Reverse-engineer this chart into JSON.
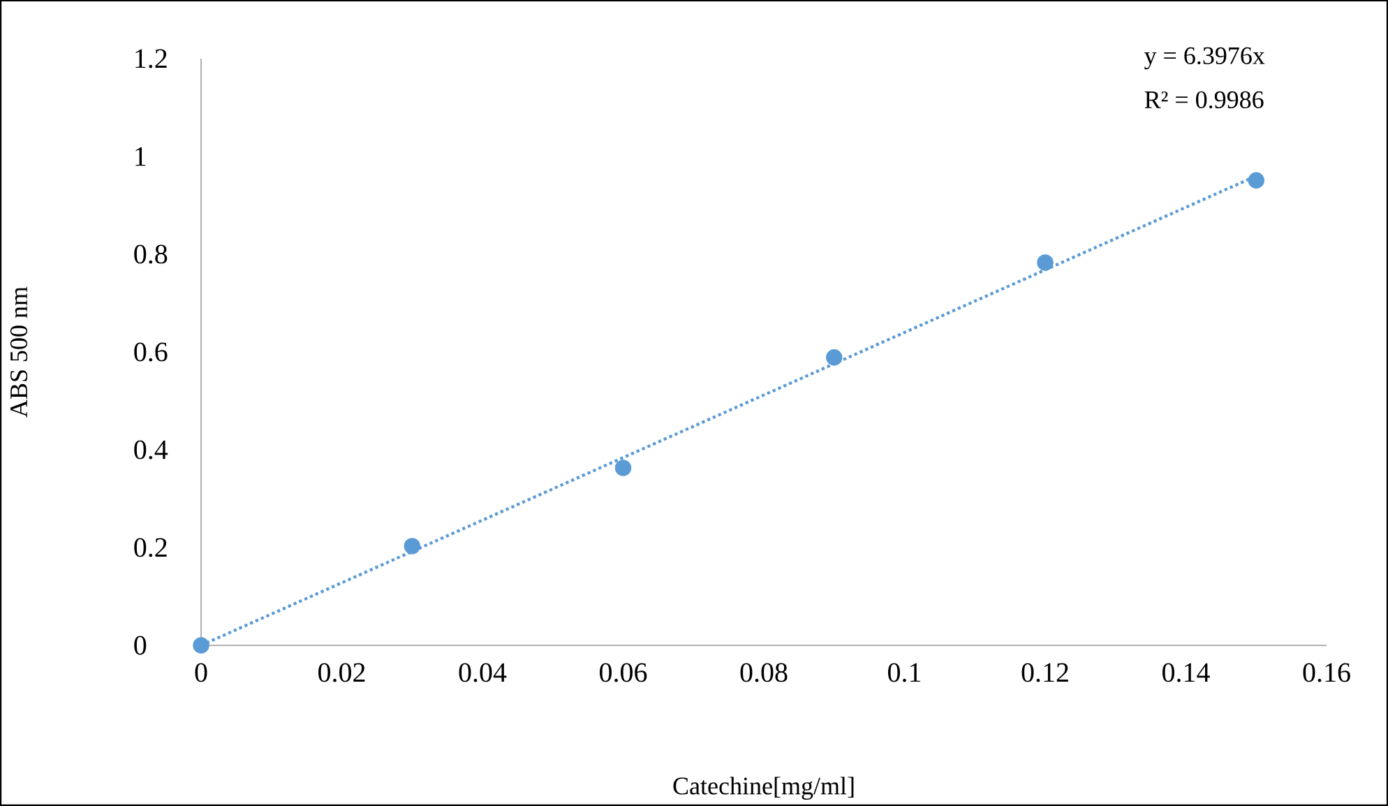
{
  "chart_data": {
    "type": "scatter",
    "xlabel": "Catechine[mg/ml]",
    "ylabel": "ABS 500 nm",
    "annotations": [
      "y = 6.3976x",
      "R² = 0.9986"
    ],
    "series": [
      {
        "color": "#5b9bd5",
        "x": [
          0,
          0.03,
          0.06,
          0.09,
          0.12,
          0.15
        ],
        "values": [
          0,
          0.203,
          0.363,
          0.589,
          0.783,
          0.951
        ],
        "marker": "circle"
      },
      {
        "type": "line",
        "color": "#5b9bd5",
        "x": [
          0,
          0.15
        ],
        "values": [
          0,
          0.96
        ],
        "marker": "none",
        "line_style": "dotted"
      }
    ],
    "xlim": [
      0,
      0.16
    ],
    "ylim": [
      0,
      1.2
    ],
    "xticks": [
      0,
      0.02,
      0.04,
      0.06,
      0.08,
      0.1,
      0.12,
      0.14,
      0.16
    ],
    "yticks": [
      0,
      0.2,
      0.4,
      0.6,
      0.8,
      1,
      1.2
    ],
    "grid": false
  }
}
